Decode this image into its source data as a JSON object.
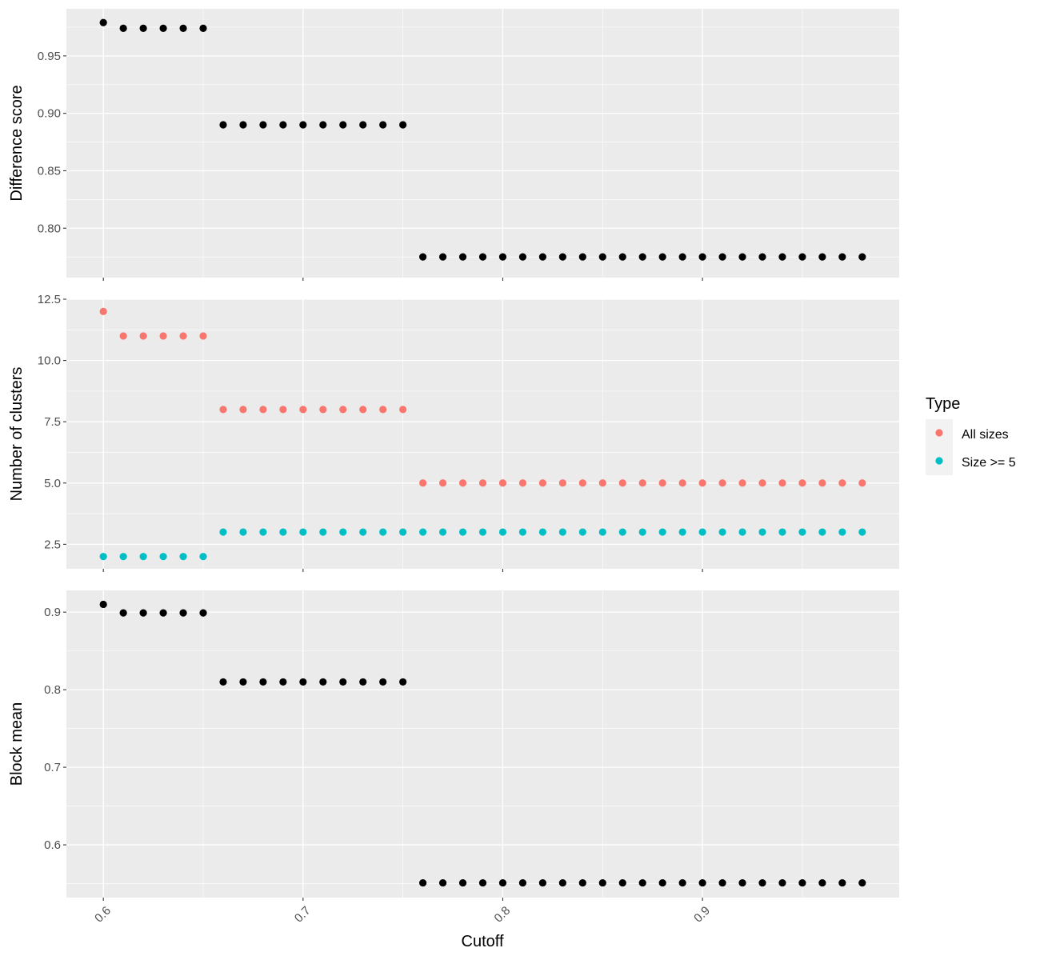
{
  "chart_data": [
    {
      "type": "scatter",
      "ylabel": "Difference score",
      "ylim": [
        0.757,
        0.991
      ],
      "yticks": [
        0.8,
        0.85,
        0.9,
        0.95
      ],
      "yticklabels": [
        "0.80",
        "0.85",
        "0.90",
        "0.95"
      ],
      "series": [
        {
          "color": "#000000",
          "x": [
            0.6,
            0.61,
            0.62,
            0.63,
            0.64,
            0.65,
            0.66,
            0.67,
            0.68,
            0.69,
            0.7,
            0.71,
            0.72,
            0.73,
            0.74,
            0.75,
            0.76,
            0.77,
            0.78,
            0.79,
            0.8,
            0.81,
            0.82,
            0.83,
            0.84,
            0.85,
            0.86,
            0.87,
            0.88,
            0.89,
            0.9,
            0.91,
            0.92,
            0.93,
            0.94,
            0.95,
            0.96,
            0.97,
            0.98
          ],
          "y": [
            0.979,
            0.974,
            0.974,
            0.974,
            0.974,
            0.974,
            0.89,
            0.89,
            0.89,
            0.89,
            0.89,
            0.89,
            0.89,
            0.89,
            0.89,
            0.89,
            0.775,
            0.775,
            0.775,
            0.775,
            0.775,
            0.775,
            0.775,
            0.775,
            0.775,
            0.775,
            0.775,
            0.775,
            0.775,
            0.775,
            0.775,
            0.775,
            0.775,
            0.775,
            0.775,
            0.775,
            0.775,
            0.775,
            0.775
          ]
        }
      ]
    },
    {
      "type": "scatter",
      "ylabel": "Number of clusters",
      "ylim": [
        1.5,
        12.5
      ],
      "yticks": [
        2.5,
        5.0,
        7.5,
        10.0,
        12.5
      ],
      "yticklabels": [
        "2.5",
        "5.0",
        "7.5",
        "10.0",
        "12.5"
      ],
      "series": [
        {
          "name": "All sizes",
          "color": "#F8766D",
          "x": [
            0.6,
            0.61,
            0.62,
            0.63,
            0.64,
            0.65,
            0.66,
            0.67,
            0.68,
            0.69,
            0.7,
            0.71,
            0.72,
            0.73,
            0.74,
            0.75,
            0.76,
            0.77,
            0.78,
            0.79,
            0.8,
            0.81,
            0.82,
            0.83,
            0.84,
            0.85,
            0.86,
            0.87,
            0.88,
            0.89,
            0.9,
            0.91,
            0.92,
            0.93,
            0.94,
            0.95,
            0.96,
            0.97,
            0.98
          ],
          "y": [
            12,
            11,
            11,
            11,
            11,
            11,
            8,
            8,
            8,
            8,
            8,
            8,
            8,
            8,
            8,
            8,
            5,
            5,
            5,
            5,
            5,
            5,
            5,
            5,
            5,
            5,
            5,
            5,
            5,
            5,
            5,
            5,
            5,
            5,
            5,
            5,
            5,
            5,
            5
          ]
        },
        {
          "name": "Size >= 5",
          "color": "#00BFC4",
          "x": [
            0.6,
            0.61,
            0.62,
            0.63,
            0.64,
            0.65,
            0.66,
            0.67,
            0.68,
            0.69,
            0.7,
            0.71,
            0.72,
            0.73,
            0.74,
            0.75,
            0.76,
            0.77,
            0.78,
            0.79,
            0.8,
            0.81,
            0.82,
            0.83,
            0.84,
            0.85,
            0.86,
            0.87,
            0.88,
            0.89,
            0.9,
            0.91,
            0.92,
            0.93,
            0.94,
            0.95,
            0.96,
            0.97,
            0.98
          ],
          "y": [
            2,
            2,
            2,
            2,
            2,
            2,
            3,
            3,
            3,
            3,
            3,
            3,
            3,
            3,
            3,
            3,
            3,
            3,
            3,
            3,
            3,
            3,
            3,
            3,
            3,
            3,
            3,
            3,
            3,
            3,
            3,
            3,
            3,
            3,
            3,
            3,
            3,
            3,
            3
          ]
        }
      ]
    },
    {
      "type": "scatter",
      "ylabel": "Block mean",
      "ylim": [
        0.532,
        0.928
      ],
      "yticks": [
        0.6,
        0.7,
        0.8,
        0.9
      ],
      "yticklabels": [
        "0.6",
        "0.7",
        "0.8",
        "0.9"
      ],
      "series": [
        {
          "color": "#000000",
          "x": [
            0.6,
            0.61,
            0.62,
            0.63,
            0.64,
            0.65,
            0.66,
            0.67,
            0.68,
            0.69,
            0.7,
            0.71,
            0.72,
            0.73,
            0.74,
            0.75,
            0.76,
            0.77,
            0.78,
            0.79,
            0.8,
            0.81,
            0.82,
            0.83,
            0.84,
            0.85,
            0.86,
            0.87,
            0.88,
            0.89,
            0.9,
            0.91,
            0.92,
            0.93,
            0.94,
            0.95,
            0.96,
            0.97,
            0.98
          ],
          "y": [
            0.91,
            0.899,
            0.899,
            0.899,
            0.899,
            0.899,
            0.81,
            0.81,
            0.81,
            0.81,
            0.81,
            0.81,
            0.81,
            0.81,
            0.81,
            0.81,
            0.551,
            0.551,
            0.551,
            0.551,
            0.551,
            0.551,
            0.551,
            0.551,
            0.551,
            0.551,
            0.551,
            0.551,
            0.551,
            0.551,
            0.551,
            0.551,
            0.551,
            0.551,
            0.551,
            0.551,
            0.551,
            0.551,
            0.551
          ]
        }
      ]
    }
  ],
  "x_axis": {
    "label": "Cutoff",
    "xlim": [
      0.5815,
      0.9985
    ],
    "ticks": [
      0.6,
      0.7,
      0.8,
      0.9
    ],
    "ticklabels": [
      "0.6",
      "0.7",
      "0.8",
      "0.9"
    ]
  },
  "legend": {
    "title": "Type",
    "placement": "right",
    "items": [
      {
        "label": "All sizes",
        "color": "#F8766D"
      },
      {
        "label": "Size >= 5",
        "color": "#00BFC4"
      }
    ]
  },
  "colors": {
    "panel_background": "#EBEBEB",
    "grid_major": "#FFFFFF",
    "axis_text": "#4D4D4D",
    "axis_title": "#000000"
  }
}
